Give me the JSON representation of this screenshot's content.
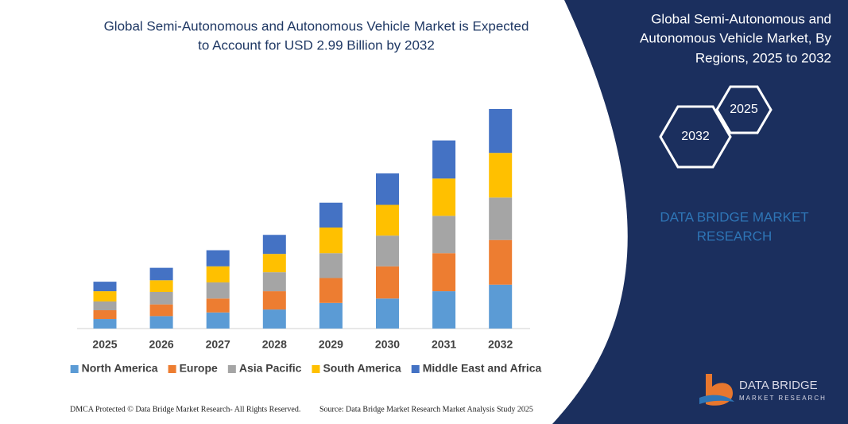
{
  "chart_data": {
    "type": "stacked-bar",
    "title": [
      "Global Semi-Autonomous and Autonomous Vehicle Market is Expected",
      "to Account for USD 2.99 Billion by 2032"
    ],
    "categories": [
      "2025",
      "2026",
      "2027",
      "2028",
      "2029",
      "2030",
      "2031",
      "2032"
    ],
    "series": [
      {
        "name": "North America",
        "color": "#5b9bd5",
        "values": [
          0.13,
          0.17,
          0.22,
          0.26,
          0.35,
          0.41,
          0.51,
          0.6
        ]
      },
      {
        "name": "Europe",
        "color": "#ed7d31",
        "values": [
          0.12,
          0.16,
          0.19,
          0.25,
          0.34,
          0.44,
          0.52,
          0.61
        ]
      },
      {
        "name": "Asia Pacific",
        "color": "#a5a5a5",
        "values": [
          0.12,
          0.17,
          0.22,
          0.26,
          0.34,
          0.42,
          0.51,
          0.58
        ]
      },
      {
        "name": "South America",
        "color": "#ffc000",
        "values": [
          0.14,
          0.16,
          0.22,
          0.25,
          0.35,
          0.42,
          0.51,
          0.61
        ]
      },
      {
        "name": "Middle East and Africa",
        "color": "#4472c4",
        "values": [
          0.13,
          0.17,
          0.22,
          0.26,
          0.34,
          0.43,
          0.52,
          0.6
        ]
      }
    ]
  },
  "panel": {
    "title": [
      "Global Semi-Autonomous and",
      "Autonomous Vehicle Market, By",
      "Regions, 2025 to 2032"
    ],
    "hex_large": "2032",
    "hex_small": "2025",
    "brand": [
      "DATA BRIDGE MARKET",
      "RESEARCH"
    ],
    "logo": {
      "name": "DATA BRIDGE",
      "tagline": "MARKET RESEARCH"
    }
  },
  "footer": {
    "left": "DMCA Protected © Data Bridge Market Research-  All Rights Reserved.",
    "right": "Source: Data Bridge Market Research  Market Analysis Study 2025"
  }
}
